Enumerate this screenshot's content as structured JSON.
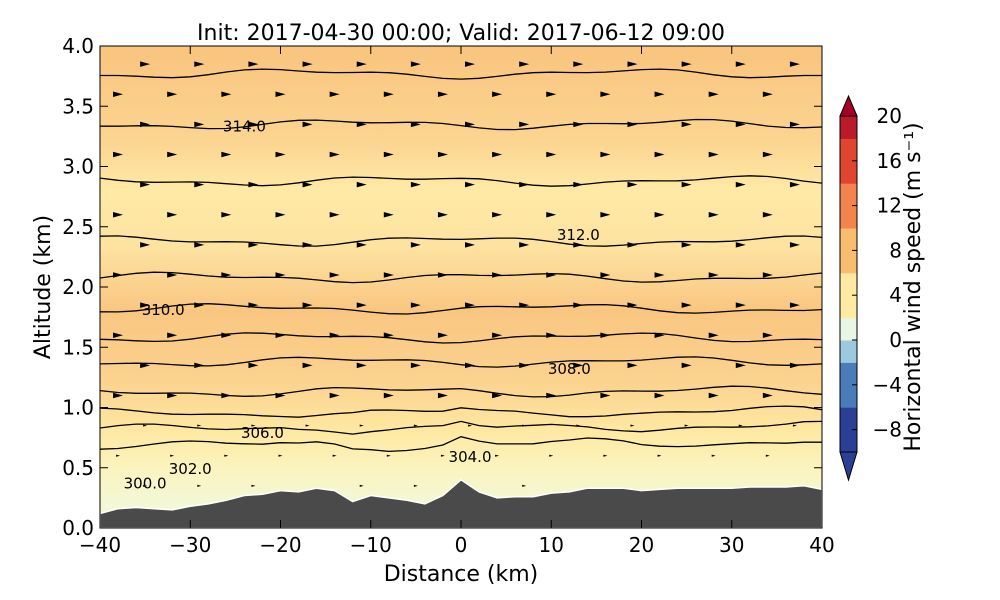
{
  "chart_data": {
    "type": "heatmap",
    "title": "Init: 2017-04-30 00:00; Valid: 2017-06-12 09:00",
    "xlabel": "Distance (km)",
    "ylabel": "Altitude (km)",
    "xlim": [
      -40,
      40
    ],
    "ylim": [
      0.0,
      4.0
    ],
    "x_ticks": [
      "−40",
      "−30",
      "−20",
      "−10",
      "0",
      "10",
      "20",
      "30",
      "40"
    ],
    "y_ticks": [
      "0.0",
      "0.5",
      "1.0",
      "1.5",
      "2.0",
      "2.5",
      "3.0",
      "3.5",
      "4.0"
    ],
    "colorbar": {
      "label": "Horizontal wind speed (m s⁻¹)",
      "range": [
        -10,
        20
      ],
      "ticks": [
        "−8",
        "−4",
        "0",
        "4",
        "8",
        "12",
        "16",
        "20"
      ],
      "extend": "both",
      "colormap": "red-yellow-blue (reversed)"
    },
    "shaded_field": {
      "name": "horizontal wind speed",
      "bands": [
        {
          "alt_range": [
            3.0,
            4.0
          ],
          "value": 6
        },
        {
          "alt_range": [
            2.3,
            3.0
          ],
          "value": 4
        },
        {
          "alt_range": [
            1.0,
            2.3
          ],
          "value": 6
        },
        {
          "alt_range": [
            0.6,
            1.0
          ],
          "value": 3
        },
        {
          "alt_range": [
            0.3,
            0.6
          ],
          "value": 1
        }
      ]
    },
    "contour_field": {
      "name": "potential temperature",
      "labeled_levels": [
        {
          "label": "300.0",
          "x": -35,
          "alt": 0.37
        },
        {
          "label": "302.0",
          "x": -30,
          "alt": 0.49
        },
        {
          "label": "304.0",
          "x": 1,
          "alt": 0.59
        },
        {
          "label": "306.0",
          "x": -22,
          "alt": 0.79
        },
        {
          "label": "308.0",
          "x": 12,
          "alt": 1.32
        },
        {
          "label": "310.0",
          "x": -33,
          "alt": 1.81
        },
        {
          "label": "312.0",
          "x": 13,
          "alt": 2.43
        },
        {
          "label": "314.0",
          "x": -24,
          "alt": 3.33
        }
      ],
      "contour_altitudes": [
        0.68,
        0.82,
        0.95,
        1.13,
        1.38,
        1.58,
        1.82,
        2.08,
        2.38,
        2.88,
        3.35,
        3.77
      ]
    },
    "terrain": {
      "x": [
        -40,
        -38,
        -36,
        -34,
        -32,
        -30,
        -28,
        -26,
        -24,
        -22,
        -20,
        -18,
        -16,
        -14,
        -12,
        -10,
        -8,
        -6,
        -4,
        -2,
        0,
        2,
        4,
        6,
        8,
        10,
        12,
        14,
        16,
        18,
        20,
        22,
        24,
        26,
        28,
        30,
        32,
        34,
        36,
        38,
        40
      ],
      "alt": [
        0.12,
        0.16,
        0.17,
        0.16,
        0.15,
        0.18,
        0.2,
        0.23,
        0.27,
        0.28,
        0.31,
        0.3,
        0.33,
        0.31,
        0.22,
        0.27,
        0.25,
        0.23,
        0.2,
        0.27,
        0.4,
        0.3,
        0.25,
        0.26,
        0.26,
        0.29,
        0.3,
        0.33,
        0.33,
        0.33,
        0.31,
        0.32,
        0.33,
        0.33,
        0.33,
        0.33,
        0.34,
        0.34,
        0.34,
        0.35,
        0.32
      ]
    },
    "grid": false,
    "legend": "colorbar-right"
  }
}
